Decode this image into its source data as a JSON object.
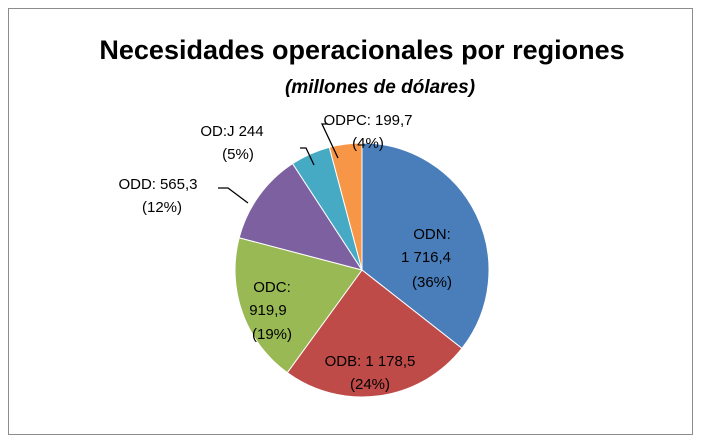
{
  "chart_data": {
    "type": "pie",
    "title": "Necesidades operacionales por regiones",
    "subtitle": "(millones de dólares)",
    "categories": [
      "ODN:",
      "ODB:",
      "ODC:",
      "ODD:",
      "OD:J",
      "ODPC:"
    ],
    "values": [
      1716.4,
      1178.5,
      919.9,
      565.3,
      244,
      199.7
    ],
    "value_labels": [
      "1 716,4",
      "1 178,5",
      "919,9",
      "565,3",
      "244",
      "199,7"
    ],
    "percent_labels": [
      "(36%)",
      "(24%)",
      "(19%)",
      "(12%)",
      "(5%)",
      "(4%)"
    ],
    "colors": [
      "#4a7ebb",
      "#be4b48",
      "#98b954",
      "#7d60a0",
      "#46aac5",
      "#f79646"
    ]
  }
}
